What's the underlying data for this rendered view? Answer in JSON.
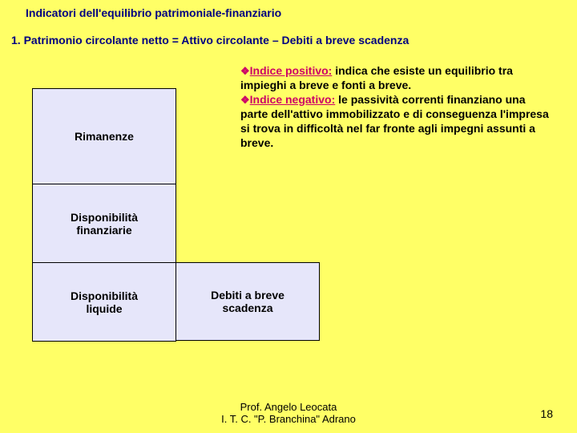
{
  "title": "Indicatori dell'equilibrio patrimoniale-finanziario",
  "formula": "1. Patrimonio circolante netto = Attivo circolante – Debiti a breve scadenza",
  "boxes": {
    "rimanenze": "Rimanenze",
    "finanziarie": "Disponibilità\nfinanziarie",
    "liquide": "Disponibilità\nliquide",
    "debiti": "Debiti a breve\nscadenza"
  },
  "explain": {
    "pos_label": "Indice positivo:",
    "pos_text": " indica che esiste un equilibrio tra impieghi a breve e fonti a breve.",
    "neg_label": "Indice negativo:",
    "neg_text": " le passività correnti finanziano una parte dell'attivo immobilizzato e di conseguenza l'impresa si trova in difficoltà nel far fronte agli impegni assunti a breve."
  },
  "footer_line1": "Prof. Angelo Leocata",
  "footer_line2": "I. T. C. \"P. Branchina\" Adrano",
  "page": "18",
  "colors": {
    "bg": "#ffff66",
    "box_fill": "#e6e6fa",
    "title_color": "#000080",
    "accent": "#cc0066"
  }
}
